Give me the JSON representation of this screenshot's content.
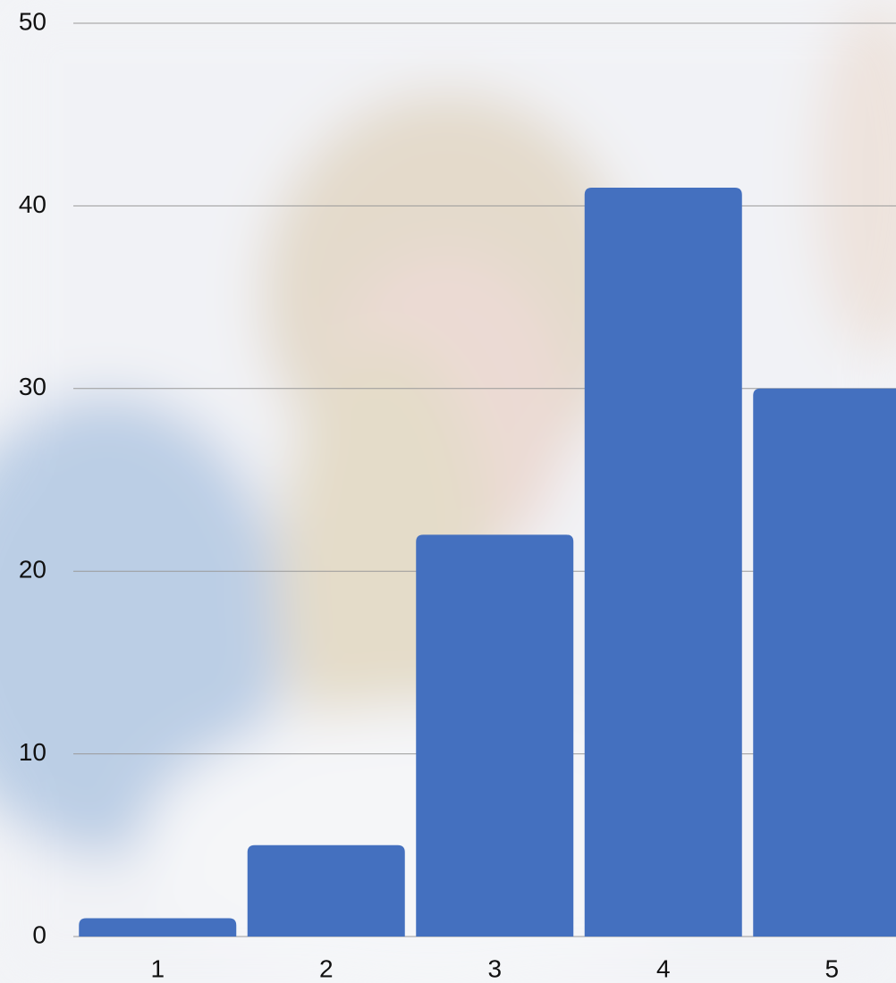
{
  "chart_data": {
    "type": "bar",
    "categories": [
      "1",
      "2",
      "3",
      "4",
      "5"
    ],
    "values": [
      1,
      5,
      22,
      41,
      30
    ],
    "color": "#4470bf",
    "ylim": [
      0,
      50
    ],
    "yticks": [
      0,
      10,
      20,
      30,
      40,
      50
    ],
    "grid": true
  }
}
